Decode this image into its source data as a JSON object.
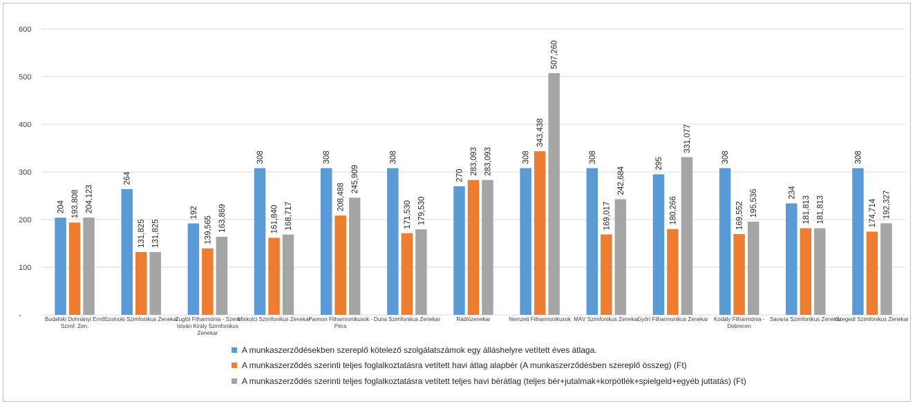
{
  "chart_data": {
    "type": "bar",
    "ylim": [
      0,
      600
    ],
    "yticks": [
      0,
      100,
      200,
      300,
      400,
      500,
      600
    ],
    "ytick_labels": [
      "-",
      "100",
      "200",
      "300",
      "400",
      "500",
      "600"
    ],
    "grid": true,
    "legend_position": "bottom",
    "value_scale_note": "second and third series plotted in thousands",
    "categories": [
      [
        "Budafoki Dohnányi Ernő",
        "Szimf. Zen."
      ],
      [
        "Szolnoki Szimfonikus Zenekar"
      ],
      [
        "Zuglói Filharmónia - Szent",
        "István Király Szimfonikus",
        "Zenekar"
      ],
      [
        "Miskolci Szimfonikus Zenekar"
      ],
      [
        "Pannon Filharmonikusok -",
        "Pécs"
      ],
      [
        "Duna Szimfonikus Zenekar"
      ],
      [
        "Rádiózenekar"
      ],
      [
        "Nemzeti Filharmonikusok"
      ],
      [
        "MÁV Szimfonikus Zenekar"
      ],
      [
        "Győri Filharmonikus Zenekar"
      ],
      [
        "Kodály Filharmónia -",
        "Debrecen"
      ],
      [
        "Savaria Szimfonikus Zenekar"
      ],
      [
        "Szegedi Szimfonikus Zenekar"
      ]
    ],
    "series": [
      {
        "name": "A munkaszerződésekben szereplő kötelező szolgálatszámok egy álláshelyre vetített éves átlaga.",
        "color": "#5b9bd5",
        "values": [
          204,
          264,
          192,
          308,
          308,
          308,
          270,
          308,
          308,
          295,
          308,
          234,
          308
        ],
        "labels": [
          "204",
          "264",
          "192",
          "308",
          "308",
          "308",
          "270",
          "308",
          "308",
          "295",
          "308",
          "234",
          "308"
        ]
      },
      {
        "name": "A munkaszerződés szerinti teljes foglalkoztatásra vetített havi átlag alapbér (A munkaszerződésben szereplő összeg) (Ft)",
        "color": "#ed7d31",
        "values": [
          193.808,
          131.825,
          139.565,
          161.84,
          208.488,
          171.53,
          283.093,
          343.438,
          169.017,
          180.266,
          169.552,
          181.813,
          174.714
        ],
        "labels": [
          "193,808",
          "131,825",
          "139,565",
          "161,840",
          "208,488",
          "171,530",
          "283,093",
          "343,438",
          "169,017",
          "180,266",
          "169,552",
          "181,813",
          "174,714"
        ]
      },
      {
        "name": "A munkaszerződés szerinti teljes foglalkoztatásra vetített teljes havi bérátlag (teljes bér+jutalmak+korpótlék+spielgeld+egyéb juttatás)  (Ft)",
        "color": "#a5a5a5",
        "values": [
          204.123,
          131.825,
          163.869,
          168.717,
          245.909,
          179.53,
          283.093,
          507.26,
          242.684,
          331.077,
          195.536,
          181.813,
          192.327
        ],
        "labels": [
          "204,123",
          "131,825",
          "163,869",
          "168,717",
          "245,909",
          "179,530",
          "283,093",
          "507,260",
          "242,684",
          "331,077",
          "195,536",
          "181,813",
          "192,327"
        ]
      }
    ]
  }
}
